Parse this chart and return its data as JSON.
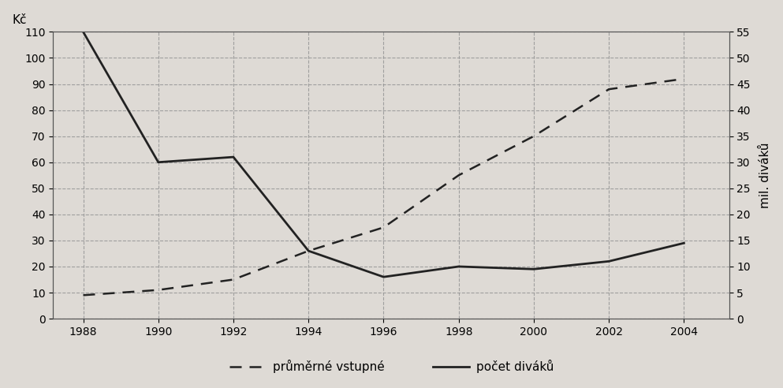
{
  "years": [
    1988,
    1990,
    1992,
    1994,
    1996,
    1998,
    2000,
    2002,
    2004
  ],
  "vstupne_kc": [
    9,
    11,
    15,
    26,
    35,
    55,
    70,
    88,
    92
  ],
  "divaku_left_scale": [
    110,
    60,
    62,
    26,
    16,
    20,
    19,
    22,
    29
  ],
  "left_ylabel": "Kč",
  "right_ylabel": "mil. diváků",
  "left_ylim": [
    0,
    110
  ],
  "right_ylim": [
    0,
    55
  ],
  "left_yticks": [
    0,
    10,
    20,
    30,
    40,
    50,
    60,
    70,
    80,
    90,
    100,
    110
  ],
  "right_yticks": [
    0,
    5,
    10,
    15,
    20,
    25,
    30,
    35,
    40,
    45,
    50,
    55
  ],
  "xticks": [
    1988,
    1990,
    1992,
    1994,
    1996,
    1998,
    2000,
    2002,
    2004
  ],
  "xlim": [
    1987.2,
    2005.2
  ],
  "legend_dashed": "průměrné vstupné",
  "legend_solid": "počet diváků",
  "line_color": "#222222",
  "bg_color": "#dedad5",
  "grid_color": "#999999",
  "grid_linestyle": "--",
  "tick_fontsize": 10,
  "ylabel_fontsize": 11,
  "legend_fontsize": 11
}
